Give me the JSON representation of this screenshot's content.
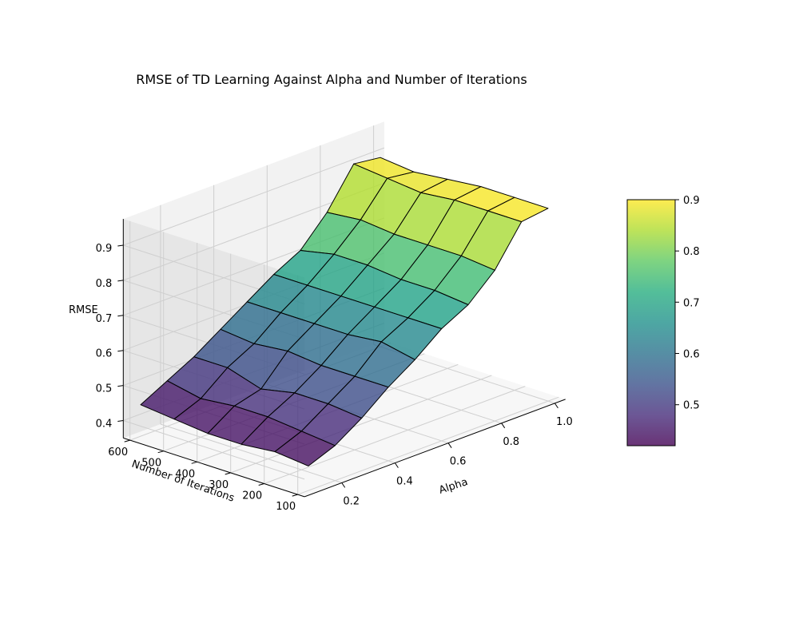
{
  "chart_data": {
    "type": "surface3d",
    "title": "RMSE of TD Learning Against Alpha and Number of Iterations",
    "xlabel": "Alpha",
    "ylabel": "Number of Iterations",
    "zlabel": "RMSE",
    "x_ticks": [
      "0.2",
      "0.4",
      "0.6",
      "0.8",
      "1.0"
    ],
    "y_ticks": [
      "600",
      "500",
      "400",
      "300",
      "200",
      "100"
    ],
    "z_ticks": [
      "0.4",
      "0.5",
      "0.6",
      "0.7",
      "0.8",
      "0.9"
    ],
    "colorbar_ticks": [
      "0.5",
      "0.6",
      "0.7",
      "0.8",
      "0.9"
    ],
    "colormap": "viridis",
    "clim": [
      0.42,
      0.9
    ],
    "grid": true,
    "alpha": [
      0.1,
      0.2,
      0.3,
      0.4,
      0.5,
      0.6,
      0.7,
      0.8,
      0.9,
      1.0
    ],
    "iterations": [
      100,
      200,
      300,
      400,
      500,
      600
    ],
    "rmse": [
      [
        0.42,
        0.45,
        0.5,
        0.56,
        0.61,
        0.67,
        0.71,
        0.78,
        0.89,
        0.9
      ],
      [
        0.43,
        0.46,
        0.51,
        0.56,
        0.63,
        0.67,
        0.72,
        0.79,
        0.89,
        0.9
      ],
      [
        0.42,
        0.47,
        0.51,
        0.56,
        0.62,
        0.67,
        0.72,
        0.79,
        0.89,
        0.9
      ],
      [
        0.42,
        0.47,
        0.49,
        0.57,
        0.62,
        0.67,
        0.73,
        0.79,
        0.88,
        0.89
      ],
      [
        0.43,
        0.46,
        0.52,
        0.56,
        0.62,
        0.67,
        0.73,
        0.8,
        0.89,
        0.88
      ],
      [
        0.44,
        0.48,
        0.52,
        0.57,
        0.62,
        0.67,
        0.71,
        0.79,
        0.9,
        0.89
      ]
    ]
  }
}
